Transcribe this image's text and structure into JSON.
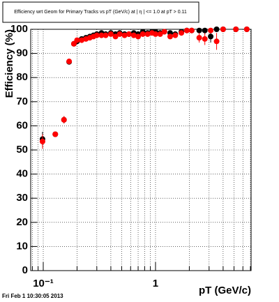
{
  "chart_data": {
    "type": "scatter",
    "title": "Efficiency wrt Geom for Primary Tracks vs pT (GeV/c) at |  η | <= 1.0 at pT > 0.11",
    "x_label": "pT (GeV/c)",
    "y_label": "Efficiency (%)",
    "footer": "Fri Feb  1 10:30:05 2013",
    "xscale": "log",
    "grid": true,
    "xlim": [
      0.0773,
      7.1
    ],
    "ylim": [
      0,
      100
    ],
    "xticks": [
      {
        "value": 0.1,
        "label": "10⁻¹"
      },
      1
    ],
    "xminor": [
      0.08,
      0.09,
      0.2,
      0.3,
      0.4,
      0.5,
      0.6,
      0.7,
      0.8,
      0.9,
      2,
      3,
      4,
      5,
      6,
      7
    ],
    "yticks": [
      0,
      10,
      20,
      30,
      40,
      50,
      60,
      70,
      80,
      90,
      100
    ],
    "x": [
      0.0985,
      0.128,
      0.153,
      0.17,
      0.1875,
      0.2,
      0.22,
      0.24,
      0.26,
      0.28,
      0.3,
      0.33,
      0.36,
      0.4,
      0.44,
      0.48,
      0.53,
      0.58,
      0.64,
      0.7,
      0.77,
      0.85,
      0.93,
      1.0,
      1.1,
      1.2,
      1.35,
      1.5,
      1.7,
      1.9,
      2.1,
      2.45,
      2.75,
      3.1,
      3.5,
      4.0,
      5.2,
      6.5
    ],
    "series": [
      {
        "color": "#000000",
        "values": [
          54.5,
          56.5,
          62.5,
          86.5,
          94,
          95,
          96,
          96.5,
          97,
          97.5,
          98,
          98.5,
          98,
          98.5,
          98,
          98.5,
          98,
          98,
          98.5,
          98,
          99,
          98.5,
          99,
          99,
          98.5,
          99,
          98.5,
          98,
          99,
          99.5,
          99.5,
          99.5,
          99.5,
          97,
          100,
          100,
          100,
          100
        ],
        "errors": [
          3,
          1,
          1.5,
          1,
          1,
          1,
          1,
          1,
          1,
          1,
          0.8,
          0.8,
          0.8,
          0.8,
          0.8,
          0.8,
          0.8,
          0.8,
          0.8,
          0.8,
          0.8,
          0.8,
          0.8,
          0.8,
          0.8,
          0.8,
          1,
          1,
          1,
          1,
          1,
          1,
          1.5,
          2.5,
          1,
          1,
          1,
          1
        ]
      },
      {
        "color": "#ff0000",
        "values": [
          53.5,
          56.5,
          62.5,
          86.7,
          94,
          95.5,
          95.5,
          96,
          96.5,
          97,
          97.5,
          97.5,
          97.5,
          98,
          97,
          98,
          97.5,
          98,
          97.5,
          97,
          98,
          98,
          98.5,
          98,
          98,
          99,
          97,
          97.5,
          98.5,
          99.5,
          99.5,
          96.5,
          96,
          99.5,
          95,
          100,
          100,
          100
        ],
        "errors": [
          3,
          1,
          1.5,
          1,
          1,
          1,
          1,
          1,
          1,
          1,
          0.8,
          0.8,
          0.8,
          0.8,
          0.8,
          0.8,
          0.8,
          0.8,
          0.8,
          0.8,
          0.8,
          0.8,
          0.8,
          0.8,
          0.8,
          0.8,
          1,
          1,
          1,
          1,
          1,
          2,
          2.5,
          1,
          3.5,
          1,
          1,
          1
        ]
      }
    ]
  }
}
